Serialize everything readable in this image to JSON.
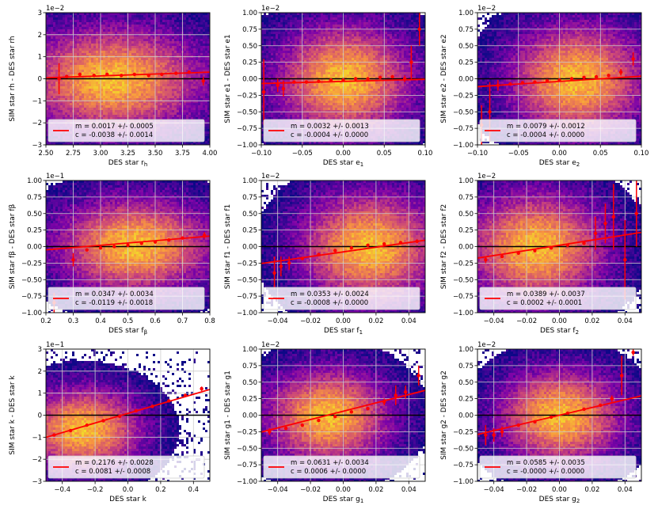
{
  "figure": {
    "colors": {
      "fit_line": "#ff0000",
      "zero_line": "#000000",
      "grid": "#cccccc",
      "heat_low": "#0d0887",
      "heat_mid": "#cc4778",
      "heat_high": "#f0f921"
    }
  },
  "chart_data": [
    {
      "type": "heatmap",
      "xlabel": "DES star r_h",
      "ylabel": "SIM star r_h - DES star r_h",
      "xlim": [
        2.5,
        4.0
      ],
      "ylim": [
        -3,
        3
      ],
      "xticks": [
        2.5,
        2.75,
        3.0,
        3.25,
        3.5,
        3.75,
        4.0
      ],
      "xtick_labels": [
        "2.50",
        "2.75",
        "3.00",
        "3.25",
        "3.50",
        "3.75",
        "4.00"
      ],
      "yticks": [
        -3,
        -2,
        -1,
        0,
        1,
        2,
        3
      ],
      "ytick_labels": [
        "−3",
        "−2",
        "−1",
        "0",
        "1",
        "2",
        "3"
      ],
      "offset_label": "1e−2",
      "scale": 0.01,
      "density_center": [
        3.1,
        0.0
      ],
      "density_spread": [
        0.35,
        1.0
      ],
      "fit": {
        "m": 0.0017,
        "c": -0.0038
      },
      "legend": [
        "m = 0.0017 +/- 0.0005",
        "c = -0.0038 +/- 0.0014"
      ],
      "binned": [
        {
          "x": 2.62,
          "y": 0.0,
          "err": 0.7
        },
        {
          "x": 2.69,
          "y": 0.1,
          "err": 0.0
        },
        {
          "x": 2.81,
          "y": 0.2,
          "err": 0.0
        },
        {
          "x": 2.94,
          "y": 0.15,
          "err": 0.0
        },
        {
          "x": 3.06,
          "y": 0.2,
          "err": 0.0
        },
        {
          "x": 3.19,
          "y": 0.15,
          "err": 0.0
        },
        {
          "x": 3.31,
          "y": 0.2,
          "err": 0.0
        },
        {
          "x": 3.44,
          "y": 0.15,
          "err": 0.0
        },
        {
          "x": 3.56,
          "y": 0.2,
          "err": 0.0
        },
        {
          "x": 3.69,
          "y": 0.25,
          "err": 0.0
        },
        {
          "x": 3.81,
          "y": 0.3,
          "err": 0.0
        },
        {
          "x": 3.94,
          "y": -0.1,
          "err": 0.2
        }
      ]
    },
    {
      "type": "heatmap",
      "xlabel": "DES star e_1",
      "ylabel": "SIM star e_1 - DES star e_1",
      "xlim": [
        -0.1,
        0.1
      ],
      "ylim": [
        -1.0,
        1.0
      ],
      "xticks": [
        -0.1,
        -0.05,
        0.0,
        0.05,
        0.1
      ],
      "xtick_labels": [
        "−0.10",
        "−0.05",
        "0.00",
        "0.05",
        "0.10"
      ],
      "yticks": [
        -1.0,
        -0.75,
        -0.5,
        -0.25,
        0.0,
        0.25,
        0.5,
        0.75,
        1.0
      ],
      "ytick_labels": [
        "−1.00",
        "−0.75",
        "−0.50",
        "−0.25",
        "0.00",
        "0.25",
        "0.50",
        "0.75",
        "1.00"
      ],
      "offset_label": "1e−2",
      "scale": 0.01,
      "density_center": [
        0.0,
        0.0
      ],
      "density_spread": [
        0.035,
        0.35
      ],
      "fit": {
        "m": 0.0032,
        "c": -0.0004
      },
      "legend": [
        "m = 0.0032 +/- 0.0013",
        "c = -0.0004 +/- 0.0000"
      ],
      "binned": [
        {
          "x": -0.097,
          "y": -0.2,
          "err": 0.5
        },
        {
          "x": -0.08,
          "y": -0.1,
          "err": 0.1
        },
        {
          "x": -0.073,
          "y": -0.15,
          "err": 0.12
        },
        {
          "x": -0.06,
          "y": -0.05,
          "err": 0.0
        },
        {
          "x": -0.045,
          "y": -0.05,
          "err": 0.0
        },
        {
          "x": -0.03,
          "y": -0.04,
          "err": 0.0
        },
        {
          "x": -0.015,
          "y": -0.02,
          "err": 0.0
        },
        {
          "x": 0.0,
          "y": -0.02,
          "err": 0.0
        },
        {
          "x": 0.015,
          "y": 0.0,
          "err": 0.0
        },
        {
          "x": 0.03,
          "y": 0.0,
          "err": 0.0
        },
        {
          "x": 0.045,
          "y": 0.02,
          "err": 0.0
        },
        {
          "x": 0.06,
          "y": 0.03,
          "err": 0.0
        },
        {
          "x": 0.075,
          "y": 0.0,
          "err": 0.05
        },
        {
          "x": 0.083,
          "y": 0.25,
          "err": 0.25
        },
        {
          "x": 0.093,
          "y": 0.75,
          "err": 0.25
        }
      ]
    },
    {
      "type": "heatmap",
      "xlabel": "DES star e_2",
      "ylabel": "SIM star e_2 - DES star e_2",
      "xlim": [
        -0.1,
        0.1
      ],
      "ylim": [
        -1.0,
        1.0
      ],
      "xticks": [
        -0.1,
        -0.05,
        0.0,
        0.05,
        0.1
      ],
      "xtick_labels": [
        "−0.10",
        "−0.05",
        "0.00",
        "0.05",
        "0.10"
      ],
      "yticks": [
        -1.0,
        -0.75,
        -0.5,
        -0.25,
        0.0,
        0.25,
        0.5,
        0.75,
        1.0
      ],
      "ytick_labels": [
        "−1.00",
        "−0.75",
        "−0.50",
        "−0.25",
        "0.00",
        "0.25",
        "0.50",
        "0.75",
        "1.00"
      ],
      "offset_label": "1e−2",
      "scale": 0.01,
      "density_center": [
        0.02,
        0.0
      ],
      "density_spread": [
        0.035,
        0.35
      ],
      "fit": {
        "m": 0.0079,
        "c": -0.0004
      },
      "legend": [
        "m = 0.0079 +/- 0.0012",
        "c = -0.0004 +/- 0.0000"
      ],
      "binned": [
        {
          "x": -0.095,
          "y": -0.7,
          "err": 0.3
        },
        {
          "x": -0.085,
          "y": -0.5,
          "err": 0.45
        },
        {
          "x": -0.075,
          "y": -0.1,
          "err": 0.08
        },
        {
          "x": -0.06,
          "y": -0.08,
          "err": 0.0
        },
        {
          "x": -0.045,
          "y": -0.06,
          "err": 0.0
        },
        {
          "x": -0.03,
          "y": -0.05,
          "err": 0.0
        },
        {
          "x": -0.015,
          "y": -0.03,
          "err": 0.0
        },
        {
          "x": 0.0,
          "y": -0.02,
          "err": 0.0
        },
        {
          "x": 0.015,
          "y": 0.0,
          "err": 0.0
        },
        {
          "x": 0.03,
          "y": 0.02,
          "err": 0.0
        },
        {
          "x": 0.045,
          "y": 0.03,
          "err": 0.0
        },
        {
          "x": 0.06,
          "y": 0.05,
          "err": 0.0
        },
        {
          "x": 0.075,
          "y": 0.1,
          "err": 0.05
        },
        {
          "x": 0.09,
          "y": 0.3,
          "err": 0.1
        }
      ]
    },
    {
      "type": "heatmap",
      "xlabel": "DES star f_β",
      "ylabel": "SIM star f_β - DES star f_β",
      "xlim": [
        0.2,
        0.8
      ],
      "ylim": [
        -1.0,
        1.0
      ],
      "xticks": [
        0.2,
        0.3,
        0.4,
        0.5,
        0.6,
        0.7,
        0.8
      ],
      "xtick_labels": [
        "0.2",
        "0.3",
        "0.4",
        "0.5",
        "0.6",
        "0.7",
        "0.8"
      ],
      "yticks": [
        -1.0,
        -0.75,
        -0.5,
        -0.25,
        0.0,
        0.25,
        0.5,
        0.75,
        1.0
      ],
      "ytick_labels": [
        "−1.00",
        "−0.75",
        "−0.50",
        "−0.25",
        "0.00",
        "0.25",
        "0.50",
        "0.75",
        "1.00"
      ],
      "offset_label": "1e−1",
      "scale": 0.1,
      "density_center": [
        0.52,
        0.03
      ],
      "density_spread": [
        0.12,
        0.3
      ],
      "fit": {
        "m": 0.0347,
        "c": -0.0119
      },
      "legend": [
        "m = 0.0347 +/- 0.0034",
        "c = -0.0119 +/- 0.0018"
      ],
      "binned": [
        {
          "x": 0.23,
          "y": -0.85,
          "err": 0.15
        },
        {
          "x": 0.3,
          "y": -0.2,
          "err": 0.1
        },
        {
          "x": 0.35,
          "y": -0.05,
          "err": 0.0
        },
        {
          "x": 0.4,
          "y": -0.02,
          "err": 0.0
        },
        {
          "x": 0.45,
          "y": 0.0,
          "err": 0.0
        },
        {
          "x": 0.5,
          "y": 0.02,
          "err": 0.0
        },
        {
          "x": 0.55,
          "y": 0.05,
          "err": 0.0
        },
        {
          "x": 0.6,
          "y": 0.07,
          "err": 0.0
        },
        {
          "x": 0.65,
          "y": 0.1,
          "err": 0.0
        },
        {
          "x": 0.7,
          "y": 0.13,
          "err": 0.0
        },
        {
          "x": 0.78,
          "y": 0.17,
          "err": 0.05
        }
      ]
    },
    {
      "type": "heatmap",
      "xlabel": "DES star f_1",
      "ylabel": "SIM star f_1 - DES star f_1",
      "xlim": [
        -0.05,
        0.05
      ],
      "ylim": [
        -1.0,
        1.0
      ],
      "xticks": [
        -0.04,
        -0.02,
        0.0,
        0.02,
        0.04
      ],
      "xtick_labels": [
        "−0.04",
        "−0.02",
        "0.00",
        "0.02",
        "0.04"
      ],
      "yticks": [
        -1.0,
        -0.75,
        -0.5,
        -0.25,
        0.0,
        0.25,
        0.5,
        0.75,
        1.0
      ],
      "ytick_labels": [
        "−1.00",
        "−0.75",
        "−0.50",
        "−0.25",
        "0.00",
        "0.25",
        "0.50",
        "0.75",
        "1.00"
      ],
      "offset_label": "1e−2",
      "scale": 0.01,
      "density_center": [
        0.015,
        0.0
      ],
      "density_spread": [
        0.018,
        0.35
      ],
      "fit": {
        "m": 0.0353,
        "c": -0.0008
      },
      "legend": [
        "m = 0.0353 +/- 0.0024",
        "c = -0.0008 +/- 0.0000"
      ],
      "binned": [
        {
          "x": -0.042,
          "y": -0.4,
          "err": 0.25
        },
        {
          "x": -0.038,
          "y": -0.3,
          "err": 0.15
        },
        {
          "x": -0.033,
          "y": -0.25,
          "err": 0.1
        },
        {
          "x": -0.025,
          "y": -0.18,
          "err": 0.0
        },
        {
          "x": -0.015,
          "y": -0.12,
          "err": 0.0
        },
        {
          "x": -0.005,
          "y": -0.06,
          "err": 0.0
        },
        {
          "x": 0.005,
          "y": -0.02,
          "err": 0.0
        },
        {
          "x": 0.015,
          "y": 0.02,
          "err": 0.0
        },
        {
          "x": 0.025,
          "y": 0.04,
          "err": 0.0
        },
        {
          "x": 0.035,
          "y": 0.06,
          "err": 0.0
        },
        {
          "x": 0.045,
          "y": 0.08,
          "err": 0.03
        }
      ]
    },
    {
      "type": "heatmap",
      "xlabel": "DES star f_2",
      "ylabel": "SIM star f_2 - DES star f_2",
      "xlim": [
        -0.05,
        0.05
      ],
      "ylim": [
        -1.0,
        1.0
      ],
      "xticks": [
        -0.04,
        -0.02,
        0.0,
        0.02,
        0.04
      ],
      "xtick_labels": [
        "−0.04",
        "−0.02",
        "0.00",
        "0.02",
        "0.04"
      ],
      "yticks": [
        -1.0,
        -0.75,
        -0.5,
        -0.25,
        0.0,
        0.25,
        0.5,
        0.75,
        1.0
      ],
      "ytick_labels": [
        "−1.00",
        "−0.75",
        "−0.50",
        "−0.25",
        "0.00",
        "0.25",
        "0.50",
        "0.75",
        "1.00"
      ],
      "offset_label": "1e−2",
      "scale": 0.01,
      "density_center": [
        -0.015,
        0.0
      ],
      "density_spread": [
        0.018,
        0.35
      ],
      "fit": {
        "m": 0.0389,
        "c": 0.0002
      },
      "legend": [
        "m = 0.0389 +/- 0.0037",
        "c = 0.0002 +/- 0.0001"
      ],
      "binned": [
        {
          "x": -0.045,
          "y": -0.2,
          "err": 0.05
        },
        {
          "x": -0.035,
          "y": -0.15,
          "err": 0.0
        },
        {
          "x": -0.025,
          "y": -0.1,
          "err": 0.0
        },
        {
          "x": -0.015,
          "y": -0.06,
          "err": 0.0
        },
        {
          "x": -0.005,
          "y": -0.02,
          "err": 0.0
        },
        {
          "x": 0.005,
          "y": 0.02,
          "err": 0.0
        },
        {
          "x": 0.015,
          "y": 0.05,
          "err": 0.0
        },
        {
          "x": 0.022,
          "y": 0.2,
          "err": 0.25
        },
        {
          "x": 0.028,
          "y": 0.35,
          "err": 0.3
        },
        {
          "x": 0.033,
          "y": 0.45,
          "err": 0.5
        },
        {
          "x": 0.04,
          "y": -0.2,
          "err": 0.6
        },
        {
          "x": 0.047,
          "y": 0.5,
          "err": 0.5
        }
      ]
    },
    {
      "type": "heatmap",
      "xlabel": "DES star k",
      "ylabel": "SIM star k - DES star k",
      "xlim": [
        -0.5,
        0.5
      ],
      "ylim": [
        -3,
        3
      ],
      "xticks": [
        -0.4,
        -0.2,
        0.0,
        0.2,
        0.4
      ],
      "xtick_labels": [
        "−0.4",
        "−0.2",
        "0.0",
        "0.2",
        "0.4"
      ],
      "yticks": [
        -3,
        -2,
        -1,
        0,
        1,
        2,
        3
      ],
      "ytick_labels": [
        "−3",
        "−2",
        "−1",
        "0",
        "1",
        "2",
        "3"
      ],
      "offset_label": "1e−1",
      "scale": 0.1,
      "density_center": [
        -0.28,
        -0.6
      ],
      "density_spread": [
        0.15,
        0.8
      ],
      "fit": {
        "m": 0.2176,
        "c": 0.0081
      },
      "legend": [
        "m = 0.2176 +/- 0.0028",
        "c = 0.0081 +/- 0.0008"
      ],
      "binned": [
        {
          "x": -0.45,
          "y": -0.9,
          "err": 0.0
        },
        {
          "x": -0.35,
          "y": -0.7,
          "err": 0.0
        },
        {
          "x": -0.25,
          "y": -0.45,
          "err": 0.0
        },
        {
          "x": -0.15,
          "y": -0.25,
          "err": 0.0
        },
        {
          "x": -0.05,
          "y": -0.05,
          "err": 0.0
        },
        {
          "x": 0.05,
          "y": 0.2,
          "err": 0.0
        },
        {
          "x": 0.15,
          "y": 0.4,
          "err": 0.0
        },
        {
          "x": 0.25,
          "y": 0.65,
          "err": 0.0
        },
        {
          "x": 0.35,
          "y": 0.9,
          "err": 0.0
        },
        {
          "x": 0.45,
          "y": 1.2,
          "err": 0.1
        }
      ]
    },
    {
      "type": "heatmap",
      "xlabel": "DES star g_1",
      "ylabel": "SIM star g_1 - DES star g_1",
      "xlim": [
        -0.05,
        0.05
      ],
      "ylim": [
        -1.0,
        1.0
      ],
      "xticks": [
        -0.04,
        -0.02,
        0.0,
        0.02,
        0.04
      ],
      "xtick_labels": [
        "−0.04",
        "−0.02",
        "0.00",
        "0.02",
        "0.04"
      ],
      "yticks": [
        -1.0,
        -0.75,
        -0.5,
        -0.25,
        0.0,
        0.25,
        0.5,
        0.75,
        1.0
      ],
      "ytick_labels": [
        "−1.00",
        "−0.75",
        "−0.50",
        "−0.25",
        "0.00",
        "0.25",
        "0.50",
        "0.75",
        "1.00"
      ],
      "offset_label": "1e−2",
      "scale": 0.01,
      "density_center": [
        -0.01,
        0.0
      ],
      "density_spread": [
        0.016,
        0.3
      ],
      "fit": {
        "m": 0.0631,
        "c": 0.0006
      },
      "legend": [
        "m = 0.0631 +/- 0.0034",
        "c = 0.0006 +/- 0.0000"
      ],
      "binned": [
        {
          "x": -0.045,
          "y": -0.25,
          "err": 0.05
        },
        {
          "x": -0.035,
          "y": -0.2,
          "err": 0.0
        },
        {
          "x": -0.025,
          "y": -0.15,
          "err": 0.0
        },
        {
          "x": -0.015,
          "y": -0.08,
          "err": 0.0
        },
        {
          "x": -0.005,
          "y": -0.02,
          "err": 0.0
        },
        {
          "x": 0.005,
          "y": 0.05,
          "err": 0.0
        },
        {
          "x": 0.015,
          "y": 0.1,
          "err": 0.0
        },
        {
          "x": 0.025,
          "y": 0.2,
          "err": 0.05
        },
        {
          "x": 0.032,
          "y": 0.3,
          "err": 0.15
        },
        {
          "x": 0.038,
          "y": 0.35,
          "err": 0.1
        },
        {
          "x": 0.046,
          "y": 0.6,
          "err": 0.15
        }
      ]
    },
    {
      "type": "heatmap",
      "xlabel": "DES star g_2",
      "ylabel": "SIM star g_2 - DES star g_2",
      "xlim": [
        -0.05,
        0.05
      ],
      "ylim": [
        -1.0,
        1.0
      ],
      "xticks": [
        -0.04,
        -0.02,
        0.0,
        0.02,
        0.04
      ],
      "xtick_labels": [
        "−0.04",
        "−0.02",
        "0.00",
        "0.02",
        "0.04"
      ],
      "yticks": [
        -1.0,
        -0.75,
        -0.5,
        -0.25,
        0.0,
        0.25,
        0.5,
        0.75,
        1.0
      ],
      "ytick_labels": [
        "−1.00",
        "−0.75",
        "−0.50",
        "−0.25",
        "0.00",
        "0.25",
        "0.50",
        "0.75",
        "1.00"
      ],
      "offset_label": "1e−2",
      "scale": 0.01,
      "density_center": [
        0.0,
        0.0
      ],
      "density_spread": [
        0.016,
        0.3
      ],
      "fit": {
        "m": 0.0585,
        "c": -0.0
      },
      "legend": [
        "m = 0.0585 +/- 0.0035",
        "c = -0.0000 +/- 0.0000"
      ],
      "binned": [
        {
          "x": -0.045,
          "y": -0.3,
          "err": 0.15
        },
        {
          "x": -0.04,
          "y": -0.3,
          "err": 0.1
        },
        {
          "x": -0.035,
          "y": -0.25,
          "err": 0.08
        },
        {
          "x": -0.025,
          "y": -0.15,
          "err": 0.0
        },
        {
          "x": -0.015,
          "y": -0.1,
          "err": 0.0
        },
        {
          "x": -0.005,
          "y": -0.03,
          "err": 0.0
        },
        {
          "x": 0.005,
          "y": 0.03,
          "err": 0.0
        },
        {
          "x": 0.015,
          "y": 0.09,
          "err": 0.0
        },
        {
          "x": 0.025,
          "y": 0.15,
          "err": 0.0
        },
        {
          "x": 0.032,
          "y": 0.25,
          "err": 0.05
        },
        {
          "x": 0.038,
          "y": 0.6,
          "err": 0.3
        },
        {
          "x": 0.045,
          "y": 0.95,
          "err": 0.05
        }
      ]
    }
  ]
}
